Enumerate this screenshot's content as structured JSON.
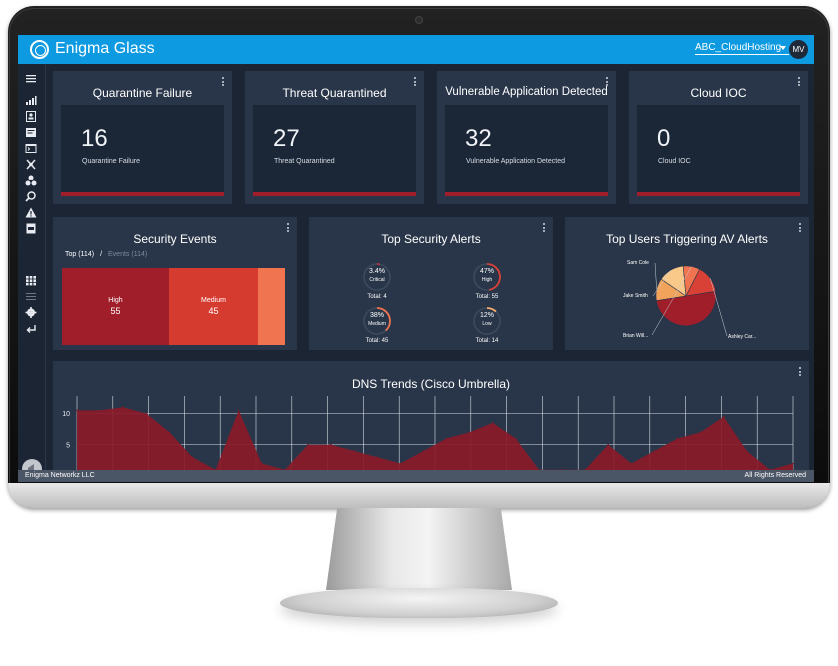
{
  "app": {
    "title": "Enigma Glass",
    "tenant": "ABC_CloudHosting",
    "avatar_initials": "MV",
    "accent": "#0e9ae0"
  },
  "sidebar": {
    "icons": [
      "menu-icon",
      "chart-icon",
      "user-icon",
      "report-icon",
      "console-icon",
      "network-icon",
      "biohazard-icon",
      "search-icon",
      "warning-icon",
      "pdf-icon",
      "grid-icon",
      "list-icon",
      "settings-icon",
      "logout-icon"
    ]
  },
  "metrics": [
    {
      "title": "Quarantine Failure",
      "value": "16",
      "label": "Quarantine Failure"
    },
    {
      "title": "Threat Quarantined",
      "value": "27",
      "label": "Threat Quarantined"
    },
    {
      "title": "Vulnerable Application Detected",
      "value": "32",
      "label": "Vulnerable Application Detected"
    },
    {
      "title": "Cloud IOC",
      "value": "0",
      "label": "Cloud IOC"
    }
  ],
  "security_events": {
    "title": "Security Events",
    "tab_active": "Top (114)",
    "tab_separator": "/",
    "tab_inactive": "Events (114)",
    "blocks": [
      {
        "label": "High",
        "value": "55",
        "color": "#a01d2a"
      },
      {
        "label": "Medium",
        "value": "45",
        "color": "#d63b30"
      },
      {
        "label": "",
        "value": "",
        "color": "#ef744f"
      }
    ]
  },
  "top_security_alerts": {
    "title": "Top Security Alerts",
    "items": [
      {
        "pct": "3.4%",
        "severity": "Critical",
        "total": "Total: 4",
        "fraction": 0.034,
        "color": "#c0303e"
      },
      {
        "pct": "47%",
        "severity": "High",
        "total": "Total: 55",
        "fraction": 0.47,
        "color": "#d94036"
      },
      {
        "pct": "38%",
        "severity": "Medium",
        "total": "Total: 45",
        "fraction": 0.38,
        "color": "#ef744f"
      },
      {
        "pct": "12%",
        "severity": "Low",
        "total": "Total: 14",
        "fraction": 0.12,
        "color": "#f4ab6a"
      }
    ]
  },
  "top_users": {
    "title": "Top Users Triggering AV Alerts",
    "users": [
      "Sam Cole",
      "Jake Smith",
      "Brian Will...",
      "Ashley Car..."
    ]
  },
  "dns_trends": {
    "title": "DNS Trends (Cisco Umbrella)"
  },
  "footer": {
    "left": "Enigma Networkz LLC",
    "right": "All Rights Reserved"
  },
  "chart_data": [
    {
      "type": "pie",
      "title": "Top Users Triggering AV Alerts",
      "labels": [
        "Sam Cole",
        "Jake Smith",
        "Brian Will...",
        "Ashley Car...",
        ""
      ],
      "values": [
        12,
        14,
        9,
        15,
        50
      ],
      "colors": [
        "#f1a25b",
        "#f9c98a",
        "#ef744f",
        "#d94036",
        "#a01d2a"
      ]
    },
    {
      "type": "area",
      "title": "DNS Trends (Cisco Umbrella)",
      "ylim": [
        0,
        12
      ],
      "yticks": [
        5,
        10
      ],
      "x": [
        0,
        1,
        2,
        3,
        4,
        5,
        6,
        7,
        8,
        9,
        10,
        11,
        12,
        13,
        14,
        15,
        16,
        17,
        18,
        19,
        20,
        21,
        22,
        23,
        24,
        25,
        26,
        27,
        28,
        29,
        30,
        31
      ],
      "series": [
        {
          "values": [
            10.5,
            10.5,
            11,
            10,
            7,
            3,
            1,
            10.5,
            2,
            1,
            5,
            5,
            4,
            3,
            2,
            4,
            6,
            7,
            8.5,
            6,
            1,
            1,
            1,
            5,
            2,
            4,
            6,
            7,
            9.5,
            4,
            1,
            2
          ],
          "color": "#8a1a28"
        }
      ]
    }
  ]
}
